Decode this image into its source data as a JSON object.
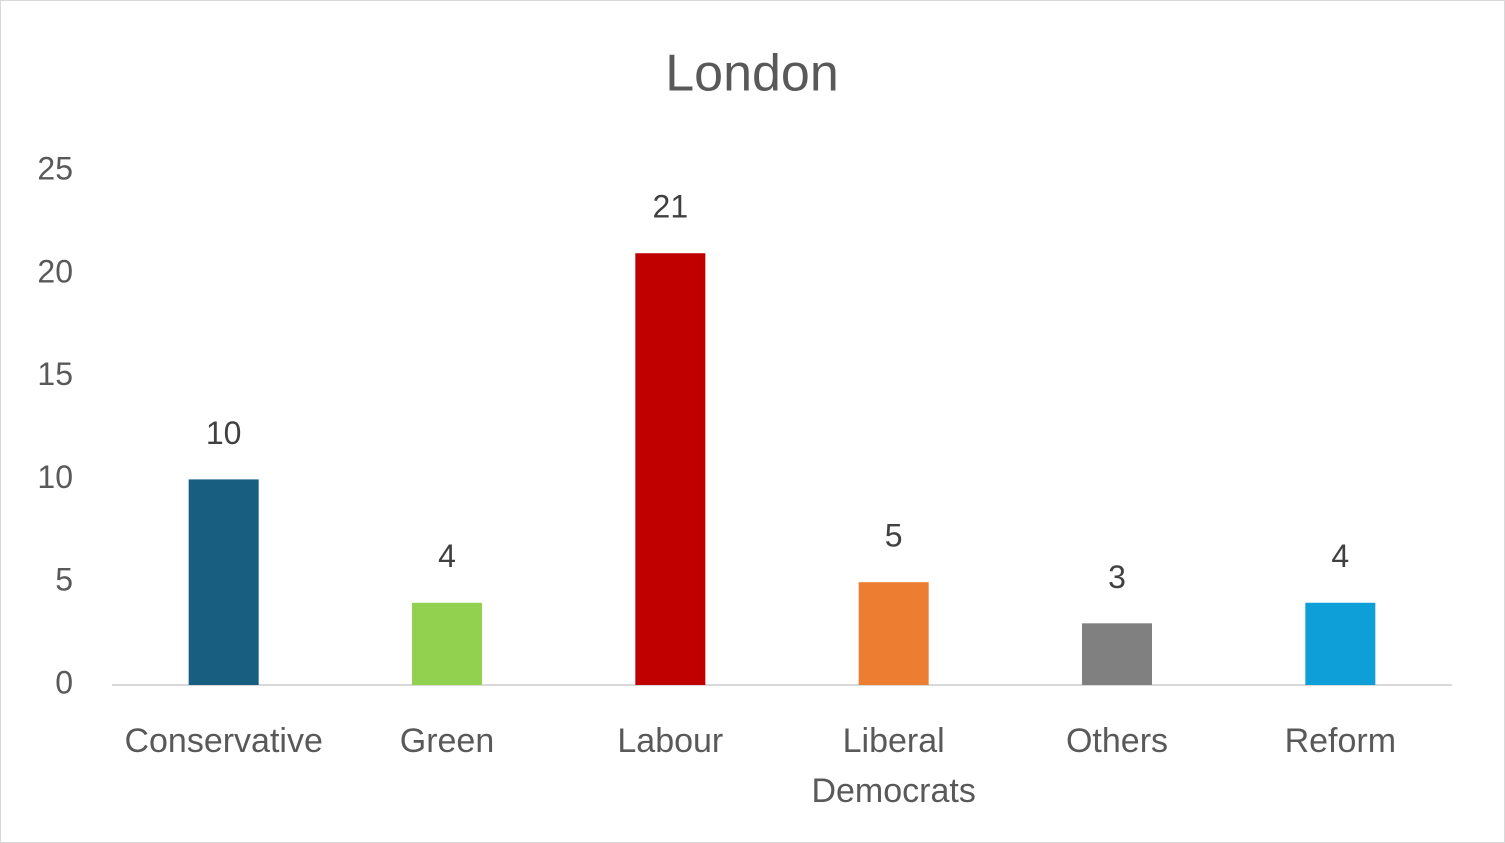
{
  "chart_data": {
    "type": "bar",
    "title": "London",
    "categories": [
      "Conservative",
      "Green",
      "Labour",
      "Liberal Democrats",
      "Others",
      "Reform"
    ],
    "values": [
      10,
      4,
      21,
      5,
      3,
      4
    ],
    "colors": [
      "#175e80",
      "#92d050",
      "#c00000",
      "#ed7d31",
      "#808080",
      "#0e9fd8"
    ],
    "ylim": [
      0,
      25
    ],
    "yticks": [
      0,
      5,
      10,
      15,
      20,
      25
    ],
    "grid": false
  }
}
